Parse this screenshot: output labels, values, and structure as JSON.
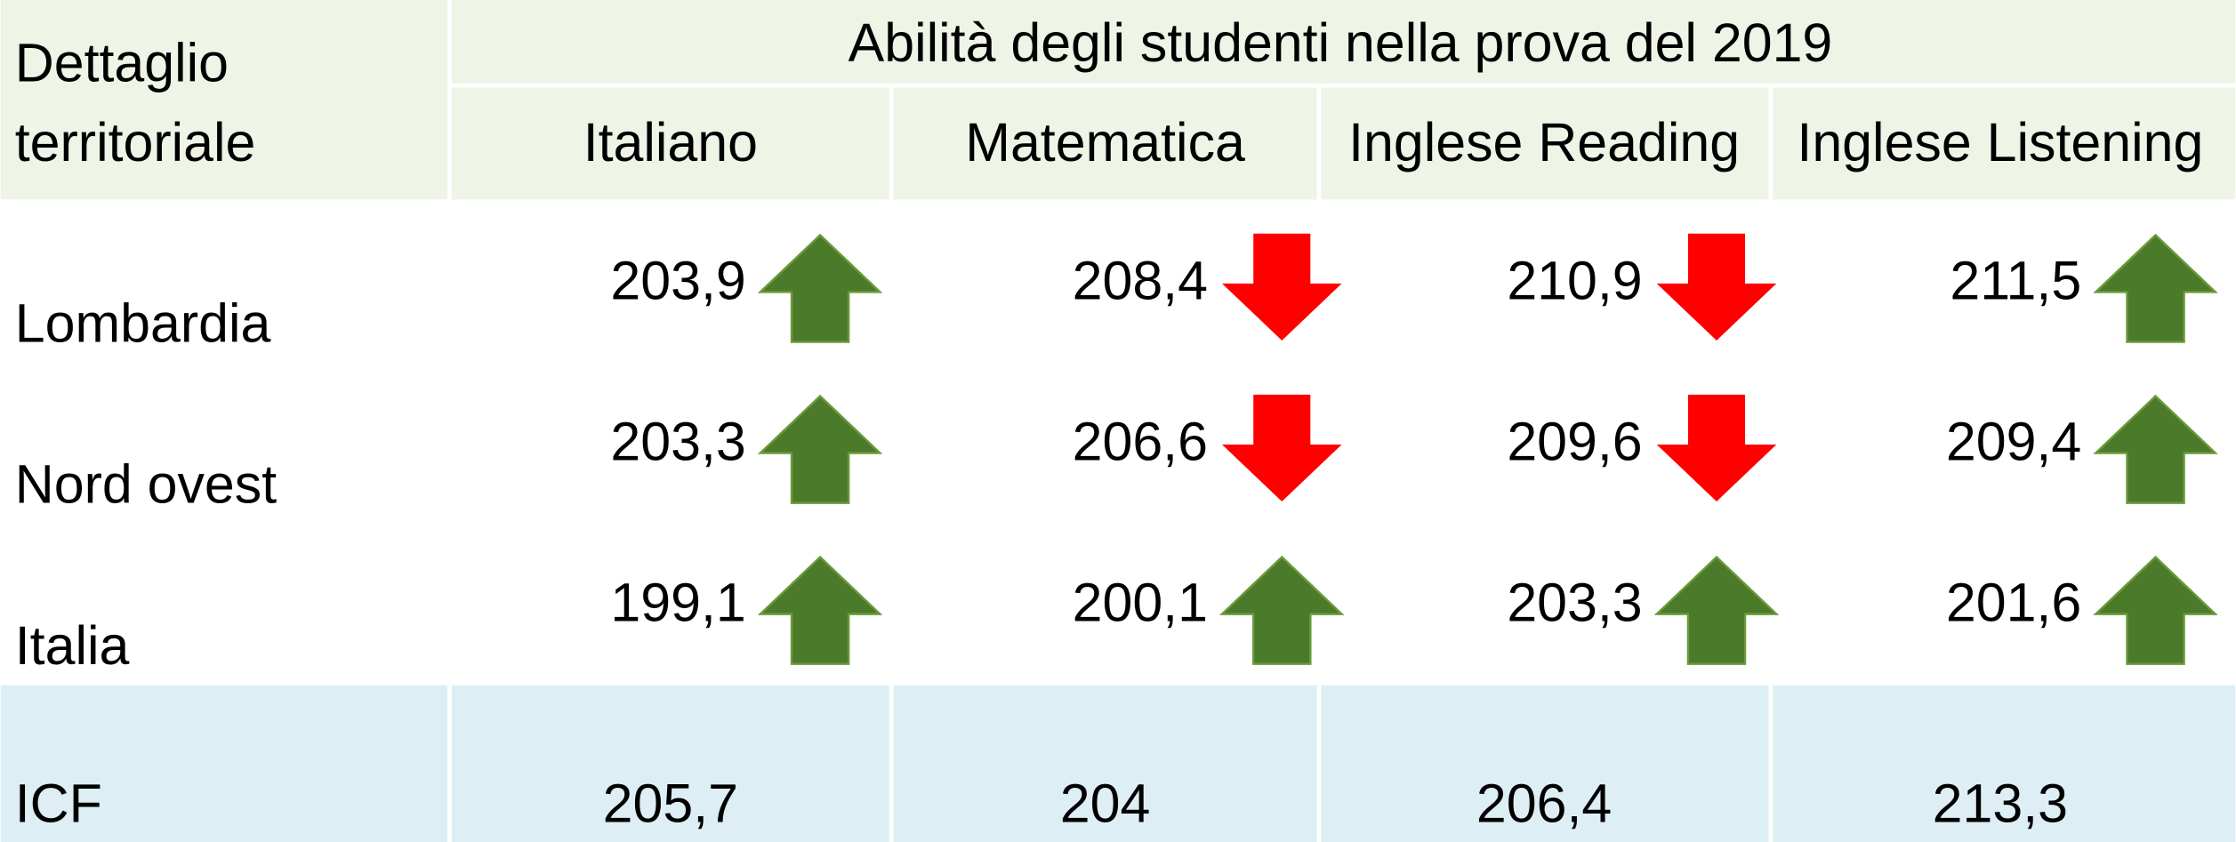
{
  "header": {
    "corner": [
      "Dettaglio",
      "territoriale"
    ],
    "title": "Abilità degli studenti nella prova del 2019",
    "columns": [
      "Italiano",
      "Matematica",
      "Inglese Reading",
      "Inglese Listening"
    ]
  },
  "table": {
    "rows": [
      {
        "label": "Lombardia",
        "values": [
          "203,9",
          "208,4",
          "210,9",
          "211,5"
        ],
        "trend": [
          "up",
          "down",
          "down",
          "up"
        ]
      },
      {
        "label": "Nord ovest",
        "values": [
          "203,3",
          "206,6",
          "209,6",
          "209,4"
        ],
        "trend": [
          "up",
          "down",
          "down",
          "up"
        ]
      },
      {
        "label": "Italia",
        "values": [
          "199,1",
          "200,1",
          "203,3",
          "201,6"
        ],
        "trend": [
          "up",
          "up",
          "up",
          "up"
        ]
      }
    ],
    "footer": {
      "label": "ICF",
      "values": [
        "205,7",
        "204",
        "206,4",
        "213,3"
      ]
    }
  },
  "colors": {
    "up": "#4a7a2a",
    "down": "#ff0000",
    "header": "#eef4e6",
    "footer": "#ddeef5"
  }
}
